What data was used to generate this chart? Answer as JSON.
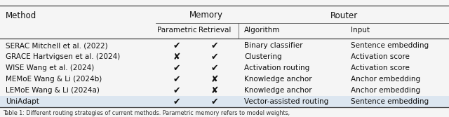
{
  "methods": [
    "SERAC Mitchell et al. (2022)",
    "GRACE Hartvigsen et al. (2024)",
    "WISE Wang et al. (2024)",
    "MEMoE Wang & Li (2024b)",
    "LEMoE Wang & Li (2024a)",
    "UniAdapt"
  ],
  "parametric": [
    true,
    false,
    true,
    true,
    true,
    true
  ],
  "retrieval": [
    true,
    true,
    true,
    false,
    false,
    true
  ],
  "algorithm": [
    "Binary classifier",
    "Clustering",
    "Activation routing",
    "Knowledge anchor",
    "Knowledge anchor",
    "Vector-assisted routing"
  ],
  "input_col": [
    "Sentence embedding",
    "Activation score",
    "Activation score",
    "Anchor embedding",
    "Anchor embedding",
    "Sentence embedding"
  ],
  "highlight_color": "#dce6f0",
  "background_color": "#f5f5f5",
  "line_color": "#444444",
  "font_size": 7.5,
  "check": "✔",
  "cross": "✘",
  "caption": "Table 1: Different routing strategies of current methods. Parametric memory refers to model weights,"
}
